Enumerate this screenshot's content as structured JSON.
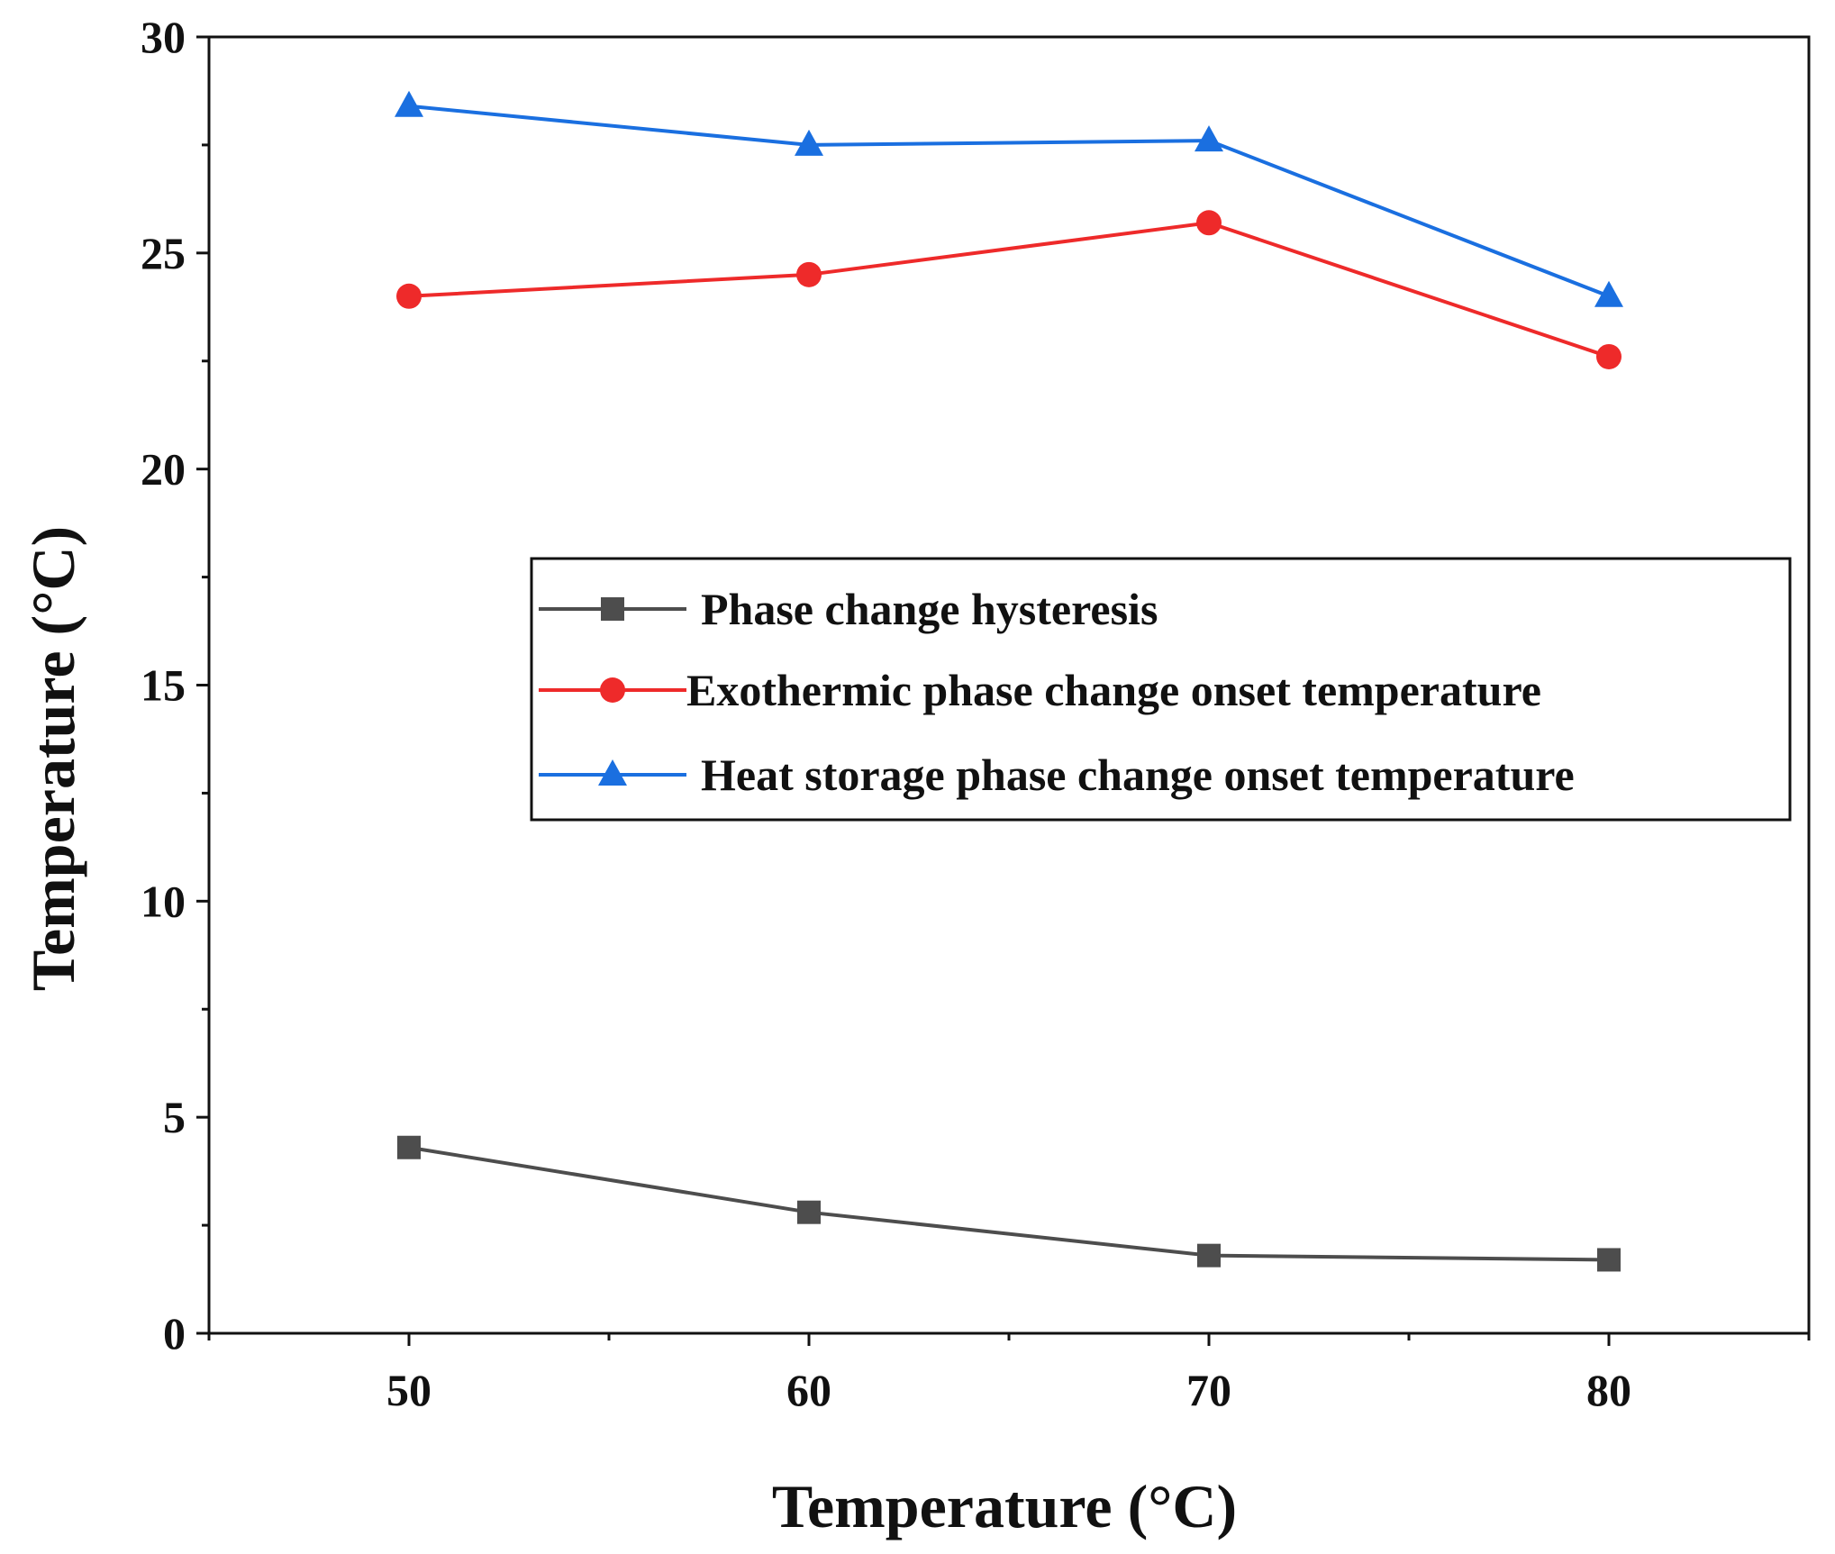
{
  "chart_data": {
    "type": "line",
    "xlabel": "Temperature (°C)",
    "ylabel": "Temperature (°C)",
    "xlim": [
      45,
      85
    ],
    "ylim": [
      0,
      30
    ],
    "x_ticks": [
      50,
      60,
      70,
      80
    ],
    "y_ticks": [
      0,
      5,
      10,
      15,
      20,
      25,
      30
    ],
    "x": [
      50,
      60,
      70,
      80
    ],
    "grid": false,
    "legend_position": "center-right",
    "series": [
      {
        "name": "Phase change hysteresis",
        "values": [
          4.3,
          2.8,
          1.8,
          1.7
        ],
        "color": "#4d4d4d",
        "marker": "square"
      },
      {
        "name": "Exothermic phase change onset temperature",
        "values": [
          24.0,
          24.5,
          25.7,
          22.6
        ],
        "color": "#ee2a2a",
        "marker": "circle"
      },
      {
        "name": "Heat storage phase change onset temperature",
        "values": [
          28.4,
          27.5,
          27.6,
          24.0
        ],
        "color": "#1a6fe0",
        "marker": "triangle"
      }
    ]
  }
}
